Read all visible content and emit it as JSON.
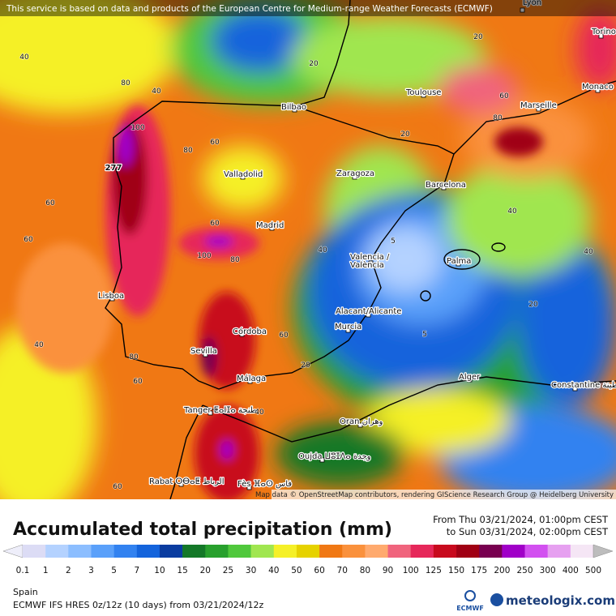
{
  "header": {
    "attribution": "This service is based on data and products of the European Centre for Medium-range Weather Forecasts (ECMWF)"
  },
  "map": {
    "credit": "Map data © OpenStreetMap contributors, rendering GIScience Research Group @ Heidelberg University",
    "cities": [
      {
        "label": "Lyon"
      },
      {
        "label": "Torino"
      },
      {
        "label": "Monaco"
      },
      {
        "label": "Toulouse"
      },
      {
        "label": "Marseille"
      },
      {
        "label": "Bilbao"
      },
      {
        "label": "Valladolid"
      },
      {
        "label": "Zaragoza"
      },
      {
        "label": "Barcelona"
      },
      {
        "label": "Madrid"
      },
      {
        "label": "Valencia /"
      },
      {
        "label": "València"
      },
      {
        "label": "Palma"
      },
      {
        "label": "Lisboa"
      },
      {
        "label": "Alacant/Alicante"
      },
      {
        "label": "Murcia"
      },
      {
        "label": "Córdoba"
      },
      {
        "label": "Sevilla"
      },
      {
        "label": "Málaga"
      },
      {
        "label": "Alger"
      },
      {
        "label": "Constantine قسنطينة"
      },
      {
        "label": "Tanger ⵟⴰⵏⵊⴰ طنجة"
      },
      {
        "label": "Oran وهران"
      },
      {
        "label": "Oujda ⵡⵓⵊⴷⴰ وجدة"
      },
      {
        "label": "Rabat ⵔⴱⴰⵟ الرباط"
      },
      {
        "label": "Fès ⴼⴰⵙ فاس"
      }
    ],
    "contour_labels": [
      40,
      60,
      60,
      40,
      60,
      80,
      100,
      80,
      60,
      60,
      100,
      80,
      60,
      40,
      20,
      20,
      60,
      80,
      40,
      40,
      20,
      5,
      5,
      20,
      40,
      60,
      40,
      20,
      80
    ],
    "max_value": 277
  },
  "footer": {
    "title": "Accumulated total precipitation (mm)",
    "date_from": "From Thu 03/21/2024, 01:00pm CEST",
    "date_to": "to Sun 03/31/2024, 02:00pm CEST",
    "region": "Spain",
    "model": "ECMWF IFS HRES 0z/12z (10 days) from  03/21/2024/12z",
    "logo_ecmwf": "ECMWF",
    "logo_brand": "meteologix.com",
    "legend": {
      "ticks": [
        0.1,
        1,
        2,
        3,
        5,
        7,
        10,
        15,
        20,
        25,
        30,
        40,
        50,
        60,
        70,
        80,
        90,
        100,
        125,
        150,
        175,
        200,
        250,
        300,
        400,
        500
      ],
      "colors": [
        "#dcdcf5",
        "#b4d2ff",
        "#8cbeff",
        "#5aa0fa",
        "#3282f0",
        "#1464dc",
        "#0a3ca0",
        "#147828",
        "#28a02d",
        "#50c83c",
        "#a0e650",
        "#f5f028",
        "#e6d200",
        "#f07814",
        "#fa913c",
        "#ffaa6e",
        "#f0647d",
        "#e6285a",
        "#c80a1e",
        "#a00014",
        "#780050",
        "#a000c8",
        "#d250f0",
        "#e6a0f0",
        "#f5e6f5"
      ],
      "under_color": "#eeeefa",
      "over_color": "#bdbdbd"
    }
  }
}
